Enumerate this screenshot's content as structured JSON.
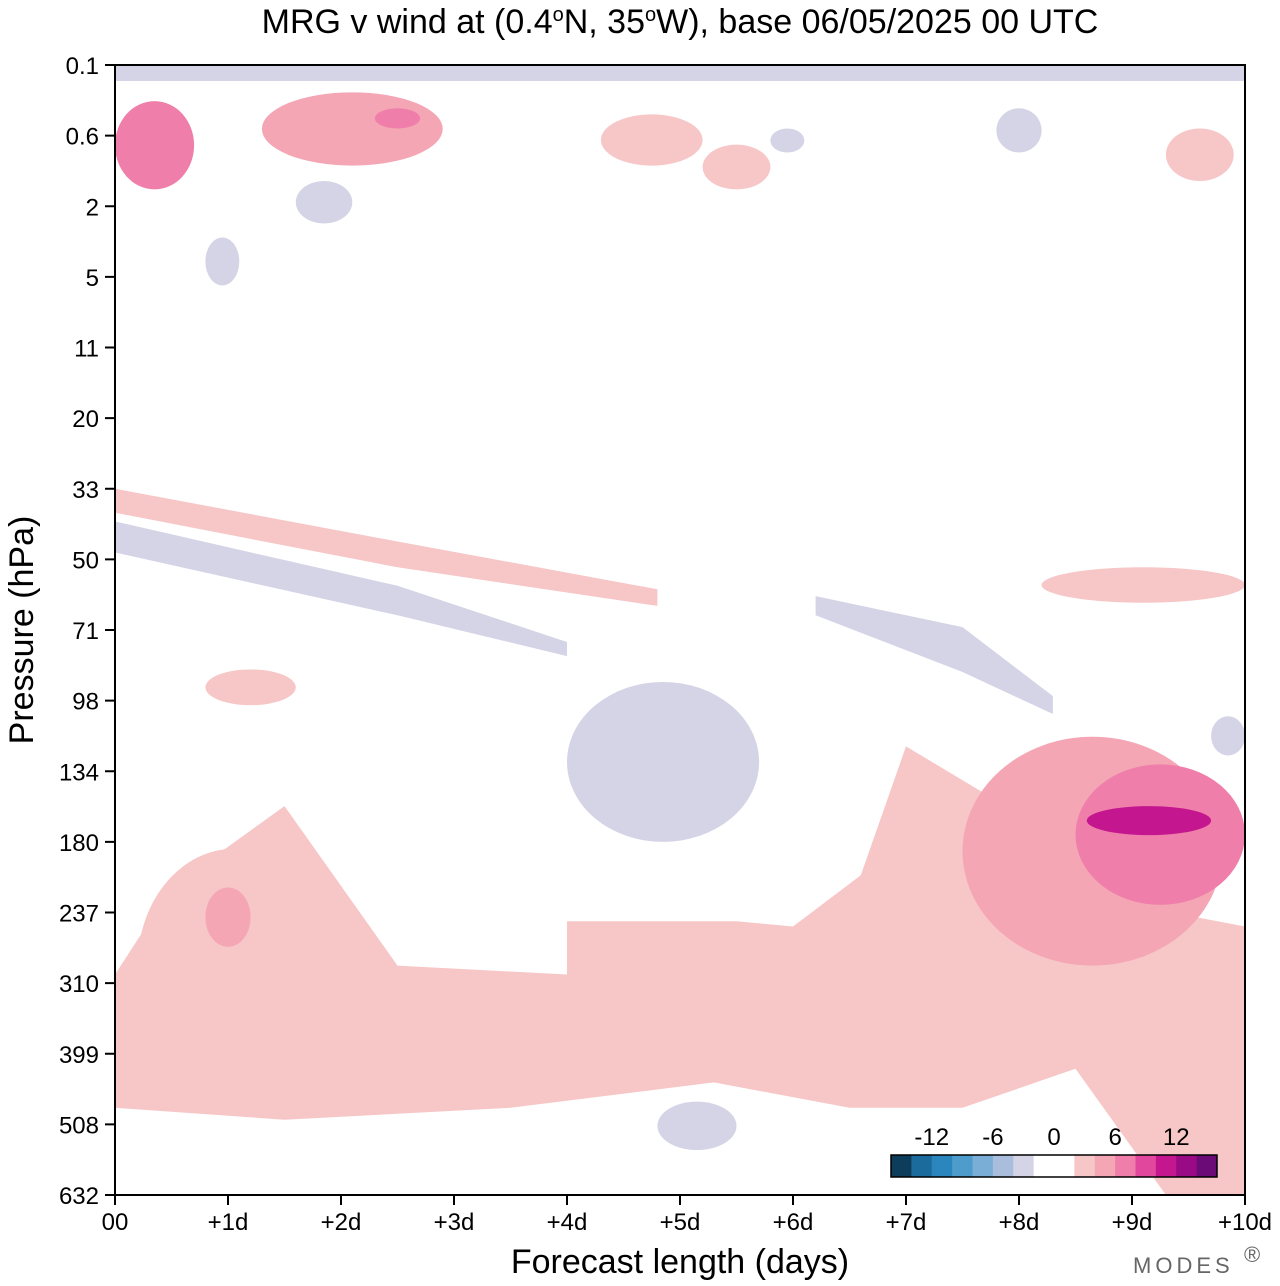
{
  "chart_data": {
    "type": "heatmap",
    "title": "MRG v wind at (0.4°N, 35°W),  base 06/05/2025  00 UTC",
    "title_parts": {
      "a": "MRG v wind at (0.4",
      "deg1": "o",
      "b": "N, 35",
      "deg2": "o",
      "c": "W),  base 06/05/2025  00 UTC"
    },
    "xlabel": "Forecast length (days)",
    "ylabel": "Pressure (hPa)",
    "x_ticks": [
      "00",
      "+1d",
      "+2d",
      "+3d",
      "+4d",
      "+5d",
      "+6d",
      "+7d",
      "+8d",
      "+9d",
      "+10d"
    ],
    "x_range_days": [
      0,
      10
    ],
    "y_ticks": [
      "0.1",
      "0.6",
      "2",
      "5",
      "11",
      "20",
      "33",
      "50",
      "71",
      "98",
      "134",
      "180",
      "237",
      "310",
      "399",
      "508",
      "632"
    ],
    "colorbar": {
      "labels": [
        "-12",
        "-6",
        "0",
        "6",
        "12"
      ],
      "colors": [
        "#0e3d5c",
        "#1b6c9c",
        "#2a86bd",
        "#4d9ccb",
        "#7aaed6",
        "#a8bedc",
        "#d4d4e6",
        "#ffffff",
        "#ffffff",
        "#f7c6c7",
        "#f4a6b5",
        "#ef7eaa",
        "#e1479d",
        "#c4168e",
        "#9a0a85",
        "#6a0b78"
      ]
    },
    "regions": [
      {
        "level": 3,
        "x0": 0.0,
        "x1": 0.7,
        "p0": 0.25,
        "p1": 1.5
      },
      {
        "level": 2,
        "x0": 1.3,
        "x1": 2.9,
        "p0": 0.2,
        "p1": 1.0
      },
      {
        "level": 3,
        "x0": 2.3,
        "x1": 2.7,
        "p0": 0.3,
        "p1": 0.5
      },
      {
        "level": 1,
        "x0": 4.3,
        "x1": 5.2,
        "p0": 0.35,
        "p1": 1.0
      },
      {
        "level": 1,
        "x0": 5.2,
        "x1": 5.8,
        "p0": 0.7,
        "p1": 1.5
      },
      {
        "level": 1,
        "x0": 9.3,
        "x1": 9.9,
        "p0": 0.5,
        "p1": 1.3
      },
      {
        "level": 1,
        "x0": 7.0,
        "x1": 8.7,
        "p0": 240,
        "p1": 330
      },
      {
        "level": 2,
        "x0": 7.5,
        "x1": 9.8,
        "p0": 115,
        "p1": 290
      },
      {
        "level": 3,
        "x0": 8.5,
        "x1": 10.0,
        "p0": 130,
        "p1": 230
      },
      {
        "level": 4,
        "x0": 8.6,
        "x1": 9.7,
        "p0": 155,
        "p1": 175
      },
      {
        "level": 1,
        "x0": 0.2,
        "x1": 1.9,
        "p0": 185,
        "p1": 440
      },
      {
        "level": 2,
        "x0": 0.8,
        "x1": 1.2,
        "p0": 215,
        "p1": 270
      },
      {
        "level": 1,
        "x0": 3.0,
        "x1": 3.9,
        "p0": 360,
        "p1": 450
      },
      {
        "level": 1,
        "x0": 8.2,
        "x1": 10.0,
        "p0": 52,
        "p1": 62
      },
      {
        "level": 1,
        "x0": 0.8,
        "x1": 1.6,
        "p0": 85,
        "p1": 100
      },
      {
        "level": -1,
        "x0": 4.0,
        "x1": 5.7,
        "p0": 90,
        "p1": 180
      },
      {
        "level": -1,
        "x0": 1.6,
        "x1": 2.1,
        "p0": 1.3,
        "p1": 2.5
      },
      {
        "level": -1,
        "x0": 0.8,
        "x1": 1.1,
        "p0": 3.0,
        "p1": 5.5
      },
      {
        "level": -1,
        "x0": 7.8,
        "x1": 8.2,
        "p0": 0.3,
        "p1": 0.8
      },
      {
        "level": -1,
        "x0": 5.8,
        "x1": 6.1,
        "p0": 0.5,
        "p1": 0.8
      },
      {
        "level": -1,
        "x0": 9.7,
        "x1": 10.0,
        "p0": 105,
        "p1": 125
      },
      {
        "level": -1,
        "x0": 4.8,
        "x1": 5.5,
        "p0": 470,
        "p1": 550
      }
    ],
    "bands": [
      {
        "level": -1,
        "pts": [
          [
            0.0,
            40
          ],
          [
            2.5,
            57
          ],
          [
            4.0,
            75
          ],
          [
            4.0,
            80
          ],
          [
            2.5,
            66
          ],
          [
            0.0,
            48
          ]
        ]
      },
      {
        "level": -1,
        "pts": [
          [
            6.2,
            60
          ],
          [
            7.5,
            70
          ],
          [
            8.3,
            96
          ],
          [
            8.3,
            104
          ],
          [
            7.5,
            86
          ],
          [
            6.2,
            66
          ]
        ]
      },
      {
        "level": 1,
        "pts": [
          [
            0.0,
            33
          ],
          [
            2.5,
            45
          ],
          [
            4.8,
            58
          ],
          [
            4.8,
            63
          ],
          [
            2.5,
            52
          ],
          [
            0.0,
            38
          ]
        ]
      },
      {
        "level": -1,
        "pts": [
          [
            0.0,
            0.1
          ],
          [
            10.0,
            0.1
          ],
          [
            10.0,
            0.15
          ],
          [
            0.0,
            0.15
          ]
        ]
      }
    ],
    "groundfill": [
      [
        0.0,
        300
      ],
      [
        0.5,
        215
      ],
      [
        1.5,
        155
      ],
      [
        2.5,
        290
      ],
      [
        4.0,
        300
      ],
      [
        4.0,
        245
      ],
      [
        5.5,
        245
      ],
      [
        6.0,
        250
      ],
      [
        6.6,
        205
      ],
      [
        7.0,
        120
      ],
      [
        9.5,
        240
      ],
      [
        10.0,
        250
      ],
      [
        10.0,
        632
      ],
      [
        9.3,
        632
      ],
      [
        8.5,
        420
      ],
      [
        7.5,
        480
      ],
      [
        6.5,
        480
      ],
      [
        5.3,
        440
      ],
      [
        3.5,
        480
      ],
      [
        1.5,
        500
      ],
      [
        0.0,
        480
      ]
    ]
  },
  "logo": "MODES"
}
